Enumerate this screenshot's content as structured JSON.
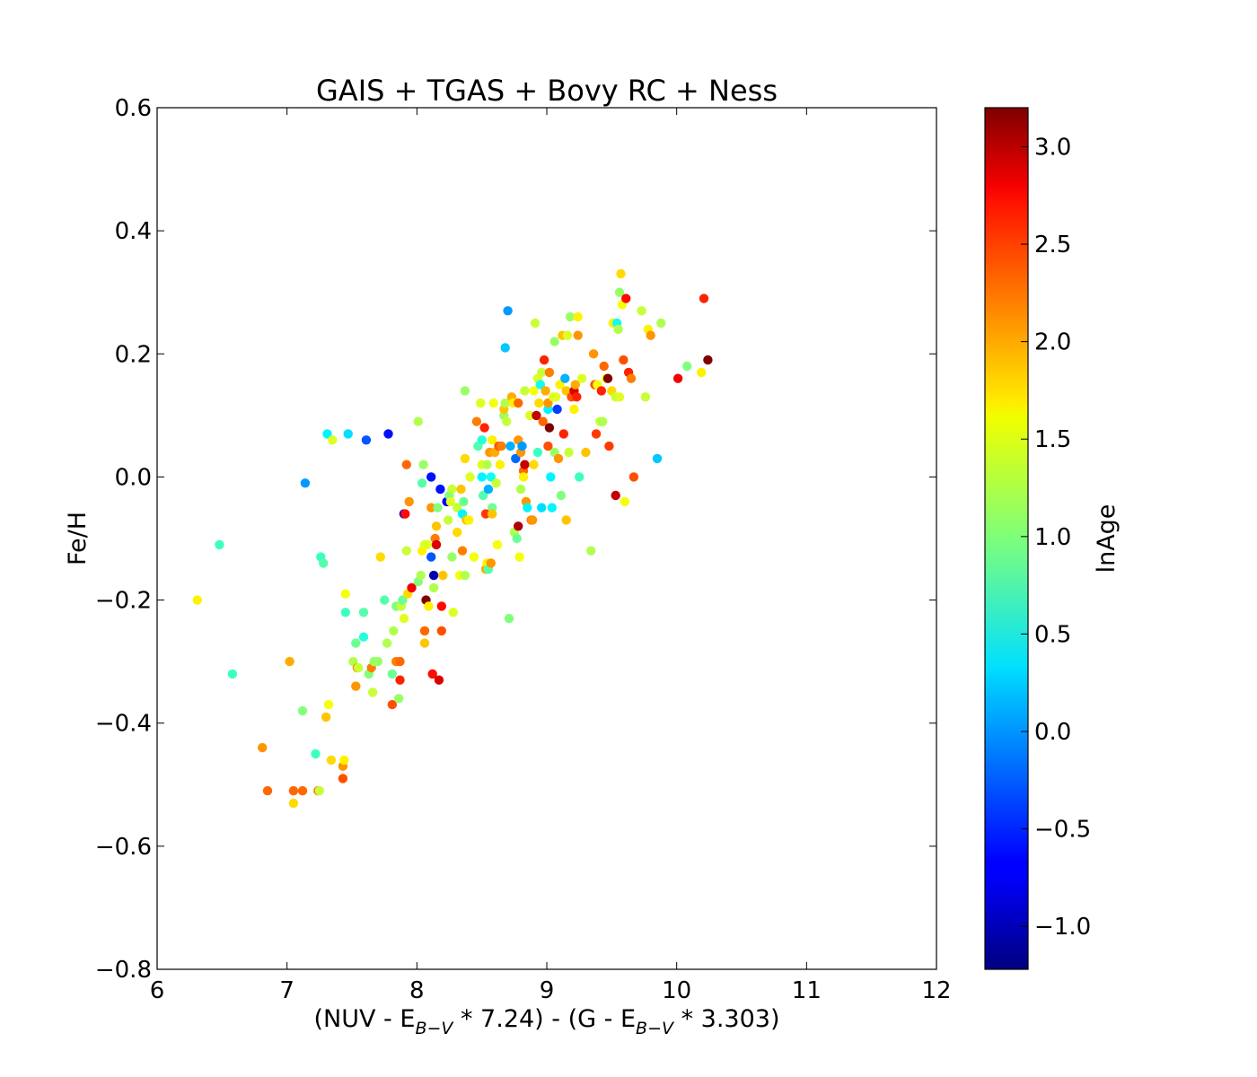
{
  "chart_data": {
    "type": "scatter",
    "title": "GAIS + TGAS + Bovy RC + Ness",
    "xlabel": {
      "parts": [
        "(NUV - E",
        "B−V",
        " * 7.24) - (G - E",
        "B−V",
        " * 3.303)"
      ]
    },
    "ylabel": "Fe/H",
    "colorbar_label": "lnAge",
    "xlim": [
      6,
      12
    ],
    "ylim": [
      -0.8,
      0.6
    ],
    "clim": [
      -1.22,
      3.2
    ],
    "colormap": "jet",
    "xticks": [
      "6",
      "7",
      "8",
      "9",
      "10",
      "11",
      "12"
    ],
    "yticks": [
      "−0.8",
      "−0.6",
      "−0.4",
      "−0.2",
      "0.0",
      "0.2",
      "0.4",
      "0.6"
    ],
    "cticks": [
      "−1.0",
      "−0.5",
      "0.0",
      "0.5",
      "1.0",
      "1.5",
      "2.0",
      "2.5",
      "3.0"
    ],
    "points": [
      [
        6.31,
        -0.2,
        1.6
      ],
      [
        6.48,
        -0.11,
        0.7
      ],
      [
        6.58,
        -0.32,
        0.7
      ],
      [
        6.81,
        -0.44,
        2.0
      ],
      [
        6.85,
        -0.51,
        2.2
      ],
      [
        7.02,
        -0.3,
        1.9
      ],
      [
        7.05,
        -0.51,
        2.2
      ],
      [
        7.05,
        -0.53,
        1.7
      ],
      [
        7.12,
        -0.51,
        2.2
      ],
      [
        7.12,
        -0.38,
        1.0
      ],
      [
        7.14,
        -0.01,
        0.0
      ],
      [
        7.22,
        -0.45,
        0.7
      ],
      [
        7.24,
        -0.51,
        2.2
      ],
      [
        7.25,
        -0.51,
        1.3
      ],
      [
        7.26,
        -0.13,
        0.7
      ],
      [
        7.28,
        -0.14,
        0.8
      ],
      [
        7.3,
        -0.39,
        1.8
      ],
      [
        7.31,
        0.07,
        0.4
      ],
      [
        7.32,
        -0.37,
        1.5
      ],
      [
        7.34,
        -0.46,
        1.7
      ],
      [
        7.35,
        0.06,
        1.4
      ],
      [
        7.43,
        -0.47,
        2.0
      ],
      [
        7.43,
        -0.49,
        2.3
      ],
      [
        7.44,
        -0.46,
        1.6
      ],
      [
        7.45,
        -0.22,
        0.7
      ],
      [
        7.45,
        -0.19,
        1.5
      ],
      [
        7.47,
        0.07,
        0.3
      ],
      [
        7.51,
        -0.3,
        1.2
      ],
      [
        7.53,
        -0.34,
        2.0
      ],
      [
        7.53,
        -0.27,
        0.9
      ],
      [
        7.54,
        -0.31,
        2.0
      ],
      [
        7.55,
        -0.31,
        1.3
      ],
      [
        7.59,
        -0.26,
        0.6
      ],
      [
        7.59,
        -0.22,
        0.8
      ],
      [
        7.61,
        0.06,
        -0.3
      ],
      [
        7.63,
        -0.32,
        1.0
      ],
      [
        7.65,
        -0.31,
        2.1
      ],
      [
        7.66,
        -0.35,
        1.3
      ],
      [
        7.67,
        -0.3,
        1.1
      ],
      [
        7.7,
        -0.3,
        1.1
      ],
      [
        7.72,
        -0.13,
        1.7
      ],
      [
        7.75,
        -0.2,
        0.8
      ],
      [
        7.77,
        -0.27,
        1.2
      ],
      [
        7.78,
        0.07,
        -0.6
      ],
      [
        7.81,
        -0.32,
        0.9
      ],
      [
        7.81,
        -0.37,
        2.3
      ],
      [
        7.82,
        -0.25,
        1.2
      ],
      [
        7.84,
        -0.21,
        1.0
      ],
      [
        7.84,
        -0.3,
        2.1
      ],
      [
        7.86,
        -0.36,
        1.1
      ],
      [
        7.87,
        -0.3,
        2.2
      ],
      [
        7.87,
        -0.33,
        2.5
      ],
      [
        7.88,
        -0.21,
        1.3
      ],
      [
        7.89,
        -0.2,
        0.9
      ],
      [
        7.9,
        -0.23,
        1.4
      ],
      [
        7.9,
        -0.06,
        -0.8
      ],
      [
        7.91,
        -0.06,
        2.6
      ],
      [
        7.92,
        0.02,
        2.2
      ],
      [
        7.92,
        -0.12,
        1.3
      ],
      [
        7.93,
        -0.19,
        1.7
      ],
      [
        7.94,
        -0.04,
        2.0
      ],
      [
        7.96,
        -0.18,
        2.7
      ],
      [
        8.01,
        -0.17,
        1.0
      ],
      [
        8.01,
        0.09,
        1.2
      ],
      [
        8.03,
        -0.16,
        1.2
      ],
      [
        8.04,
        -0.12,
        1.6
      ],
      [
        8.04,
        -0.01,
        0.8
      ],
      [
        8.05,
        0.02,
        1.1
      ],
      [
        8.06,
        -0.11,
        1.4
      ],
      [
        8.06,
        -0.25,
        2.2
      ],
      [
        8.06,
        -0.27,
        1.8
      ],
      [
        8.07,
        -0.2,
        3.2
      ],
      [
        8.08,
        -0.11,
        1.4
      ],
      [
        8.09,
        -0.21,
        1.6
      ],
      [
        8.11,
        -0.05,
        2.0
      ],
      [
        8.11,
        -0.13,
        -0.3
      ],
      [
        8.11,
        0.0,
        -0.6
      ],
      [
        8.12,
        -0.32,
        2.6
      ],
      [
        8.13,
        -0.16,
        -1.0
      ],
      [
        8.13,
        -0.18,
        1.2
      ],
      [
        8.14,
        -0.1,
        2.1
      ],
      [
        8.15,
        -0.11,
        2.8
      ],
      [
        8.15,
        -0.08,
        1.8
      ],
      [
        8.16,
        -0.05,
        1.0
      ],
      [
        8.17,
        -0.33,
        2.8
      ],
      [
        8.18,
        -0.02,
        -0.6
      ],
      [
        8.19,
        -0.21,
        2.6
      ],
      [
        8.19,
        -0.25,
        2.3
      ],
      [
        8.2,
        -0.16,
        1.8
      ],
      [
        8.23,
        -0.04,
        -0.7
      ],
      [
        8.24,
        -0.07,
        1.3
      ],
      [
        8.25,
        -0.03,
        1.0
      ],
      [
        8.26,
        -0.04,
        1.4
      ],
      [
        8.27,
        -0.13,
        1.1
      ],
      [
        8.27,
        -0.02,
        1.3
      ],
      [
        8.28,
        -0.22,
        1.4
      ],
      [
        8.31,
        -0.05,
        1.3
      ],
      [
        8.31,
        -0.09,
        1.7
      ],
      [
        8.33,
        -0.16,
        1.5
      ],
      [
        8.34,
        -0.02,
        1.8
      ],
      [
        8.35,
        -0.06,
        0.4
      ],
      [
        8.35,
        -0.12,
        2.1
      ],
      [
        8.36,
        -0.04,
        0.9
      ],
      [
        8.37,
        0.14,
        1.1
      ],
      [
        8.37,
        -0.16,
        1.2
      ],
      [
        8.37,
        0.03,
        1.7
      ],
      [
        8.38,
        -0.07,
        1.8
      ],
      [
        8.4,
        -0.07,
        1.6
      ],
      [
        8.41,
        0.0,
        1.4
      ],
      [
        8.44,
        -0.13,
        1.5
      ],
      [
        8.46,
        0.09,
        2.1
      ],
      [
        8.47,
        0.05,
        0.8
      ],
      [
        8.49,
        0.12,
        1.4
      ],
      [
        8.5,
        0.06,
        0.6
      ],
      [
        8.5,
        0.02,
        1.4
      ],
      [
        8.5,
        0.0,
        0.4
      ],
      [
        8.51,
        -0.03,
        0.8
      ],
      [
        8.52,
        0.08,
        2.5
      ],
      [
        8.53,
        -0.15,
        1.9
      ],
      [
        8.53,
        -0.06,
        2.4
      ],
      [
        8.54,
        0.02,
        1.2
      ],
      [
        8.54,
        -0.14,
        1.6
      ],
      [
        8.55,
        -0.15,
        0.8
      ],
      [
        8.55,
        -0.02,
        0.1
      ],
      [
        8.56,
        0.04,
        2.0
      ],
      [
        8.57,
        0.0,
        0.5
      ],
      [
        8.57,
        -0.14,
        2.0
      ],
      [
        8.58,
        -0.05,
        0.9
      ],
      [
        8.58,
        -0.06,
        1.8
      ],
      [
        8.58,
        0.06,
        1.6
      ],
      [
        8.59,
        0.12,
        1.5
      ],
      [
        8.6,
        0.04,
        1.9
      ],
      [
        8.61,
        -0.01,
        1.3
      ],
      [
        8.62,
        -0.11,
        1.5
      ],
      [
        8.63,
        0.05,
        2.3
      ],
      [
        8.64,
        0.02,
        1.6
      ],
      [
        8.65,
        0.05,
        2.1
      ],
      [
        8.67,
        0.1,
        1.1
      ],
      [
        8.67,
        0.11,
        1.8
      ],
      [
        8.68,
        0.21,
        0.2
      ],
      [
        8.68,
        0.12,
        1.2
      ],
      [
        8.69,
        0.09,
        1.3
      ],
      [
        8.7,
        0.27,
        0.0
      ],
      [
        8.71,
        -0.23,
        1.0
      ],
      [
        8.72,
        0.05,
        0.1
      ],
      [
        8.73,
        0.13,
        1.9
      ],
      [
        8.74,
        0.12,
        1.6
      ],
      [
        8.75,
        -0.09,
        1.2
      ],
      [
        8.76,
        0.03,
        -0.2
      ],
      [
        8.77,
        -0.1,
        0.9
      ],
      [
        8.78,
        -0.08,
        3.0
      ],
      [
        8.78,
        0.12,
        2.2
      ],
      [
        8.78,
        0.06,
        2.0
      ],
      [
        8.79,
        -0.13,
        1.5
      ],
      [
        8.8,
        0.04,
        2.0
      ],
      [
        8.8,
        -0.02,
        1.2
      ],
      [
        8.81,
        0.05,
        0.0
      ],
      [
        8.82,
        0.01,
        2.2
      ],
      [
        8.82,
        0.0,
        1.6
      ],
      [
        8.83,
        0.02,
        2.9
      ],
      [
        8.83,
        0.14,
        1.3
      ],
      [
        8.84,
        -0.04,
        2.0
      ],
      [
        8.85,
        -0.05,
        0.4
      ],
      [
        8.87,
        0.1,
        1.4
      ],
      [
        8.88,
        -0.07,
        2.1
      ],
      [
        8.89,
        -0.07,
        2.0
      ],
      [
        8.9,
        0.02,
        1.7
      ],
      [
        8.9,
        0.14,
        1.5
      ],
      [
        8.91,
        0.25,
        1.3
      ],
      [
        8.92,
        0.1,
        2.9
      ],
      [
        8.93,
        0.04,
        0.7
      ],
      [
        8.93,
        0.16,
        1.4
      ],
      [
        8.94,
        0.12,
        1.7
      ],
      [
        8.95,
        0.15,
        0.5
      ],
      [
        8.96,
        0.17,
        1.3
      ],
      [
        8.96,
        -0.05,
        0.3
      ],
      [
        8.97,
        0.09,
        2.2
      ],
      [
        8.98,
        0.19,
        2.5
      ],
      [
        8.99,
        0.14,
        1.9
      ],
      [
        9.01,
        0.05,
        2.3
      ],
      [
        9.01,
        0.11,
        0.4
      ],
      [
        9.01,
        0.12,
        2.0
      ],
      [
        9.02,
        0.17,
        2.1
      ],
      [
        9.02,
        0.08,
        3.2
      ],
      [
        9.03,
        0.0,
        0.4
      ],
      [
        9.04,
        -0.05,
        0.4
      ],
      [
        9.05,
        0.13,
        1.4
      ],
      [
        9.06,
        0.04,
        1.1
      ],
      [
        9.06,
        0.22,
        1.1
      ],
      [
        9.07,
        0.13,
        1.4
      ],
      [
        9.08,
        0.11,
        -0.4
      ],
      [
        9.09,
        0.03,
        2.0
      ],
      [
        9.1,
        0.15,
        1.6
      ],
      [
        9.11,
        -0.03,
        1.0
      ],
      [
        9.12,
        0.23,
        1.8
      ],
      [
        9.13,
        0.07,
        2.5
      ],
      [
        9.14,
        0.16,
        0.1
      ],
      [
        9.15,
        0.14,
        1.8
      ],
      [
        9.15,
        -0.07,
        1.8
      ],
      [
        9.16,
        0.23,
        1.4
      ],
      [
        9.17,
        0.04,
        1.3
      ],
      [
        9.18,
        0.26,
        1.1
      ],
      [
        9.19,
        0.13,
        2.3
      ],
      [
        9.21,
        0.14,
        2.8
      ],
      [
        9.21,
        0.11,
        1.6
      ],
      [
        9.22,
        0.15,
        1.9
      ],
      [
        9.23,
        0.13,
        2.5
      ],
      [
        9.24,
        0.26,
        1.6
      ],
      [
        9.24,
        0.23,
        2.0
      ],
      [
        9.25,
        0.0,
        0.7
      ],
      [
        9.27,
        0.16,
        1.4
      ],
      [
        9.3,
        0.04,
        1.8
      ],
      [
        9.34,
        -0.12,
        1.2
      ],
      [
        9.36,
        0.2,
        2.0
      ],
      [
        9.37,
        0.15,
        2.3
      ],
      [
        9.38,
        0.07,
        2.4
      ],
      [
        9.39,
        0.15,
        1.5
      ],
      [
        9.41,
        0.09,
        1.3
      ],
      [
        9.42,
        0.14,
        2.5
      ],
      [
        9.43,
        0.09,
        1.2
      ],
      [
        9.44,
        0.18,
        2.2
      ],
      [
        9.46,
        0.16,
        1.5
      ],
      [
        9.47,
        0.16,
        3.2
      ],
      [
        9.48,
        0.05,
        2.4
      ],
      [
        9.5,
        0.14,
        1.7
      ],
      [
        9.51,
        0.25,
        1.6
      ],
      [
        9.53,
        0.13,
        1.3
      ],
      [
        9.53,
        -0.03,
        2.9
      ],
      [
        9.54,
        0.25,
        0.5
      ],
      [
        9.55,
        0.24,
        1.2
      ],
      [
        9.56,
        0.3,
        1.1
      ],
      [
        9.56,
        0.13,
        1.4
      ],
      [
        9.57,
        0.33,
        1.7
      ],
      [
        9.58,
        0.28,
        1.5
      ],
      [
        9.59,
        0.19,
        2.3
      ],
      [
        9.6,
        -0.04,
        1.5
      ],
      [
        9.61,
        0.29,
        2.6
      ],
      [
        9.63,
        0.17,
        2.5
      ],
      [
        9.65,
        0.16,
        2.1
      ],
      [
        9.67,
        0.0,
        2.3
      ],
      [
        9.73,
        0.27,
        1.3
      ],
      [
        9.76,
        0.13,
        1.3
      ],
      [
        9.78,
        0.24,
        1.6
      ],
      [
        9.8,
        0.23,
        2.0
      ],
      [
        9.85,
        0.03,
        0.2
      ],
      [
        9.88,
        0.25,
        1.2
      ],
      [
        10.01,
        0.16,
        2.7
      ],
      [
        10.08,
        0.18,
        1.0
      ],
      [
        10.19,
        0.17,
        1.6
      ],
      [
        10.21,
        0.29,
        2.5
      ],
      [
        10.24,
        0.19,
        3.2
      ]
    ]
  }
}
